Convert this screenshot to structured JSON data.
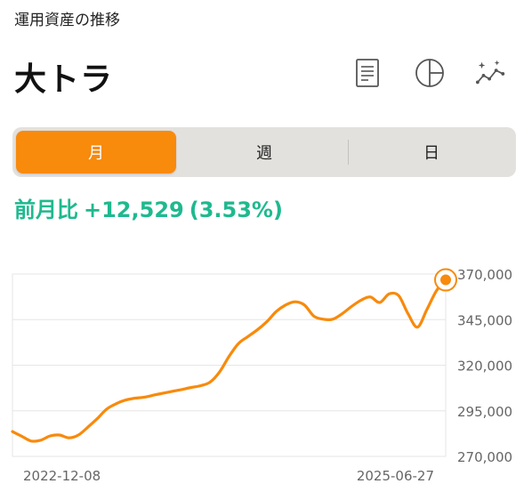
{
  "header": {
    "subtitle": "運用資産の推移",
    "title": "大トラ"
  },
  "toolbar": {
    "icons": [
      "document-icon",
      "pie-chart-icon",
      "ai-trend-icon"
    ]
  },
  "period_tabs": {
    "items": [
      {
        "label": "月",
        "active": true
      },
      {
        "label": "週",
        "active": false
      },
      {
        "label": "日",
        "active": false
      }
    ]
  },
  "change": {
    "label": "前月比",
    "value": "+12,529",
    "percent": "(3.53%)"
  },
  "colors": {
    "accent": "#f88a0c",
    "positive": "#1fb98f",
    "segment_bg": "#e3e1de"
  },
  "chart_data": {
    "type": "line",
    "x_labels": [
      "2022-12-08",
      "2025-06-27"
    ],
    "ylim": [
      270000,
      370000
    ],
    "y_ticks": [
      "370,000",
      "345,000",
      "320,000",
      "295,000",
      "270,000"
    ],
    "y_tick_values": [
      370000,
      345000,
      320000,
      295000,
      270000
    ],
    "grid": true,
    "series": [
      {
        "values": [
          283600,
          281000,
          278400,
          278900,
          281200,
          281700,
          280200,
          281700,
          286000,
          290700,
          295900,
          298900,
          300900,
          301900,
          302500,
          303600,
          304700,
          305700,
          306700,
          307800,
          308800,
          310800,
          316400,
          324900,
          331900,
          335700,
          339400,
          343800,
          349400,
          353000,
          354800,
          353000,
          346900,
          345200,
          345200,
          348200,
          352200,
          355600,
          357400,
          354400,
          359100,
          358200,
          348200,
          340900,
          350500,
          360700,
          366800
        ]
      }
    ]
  }
}
